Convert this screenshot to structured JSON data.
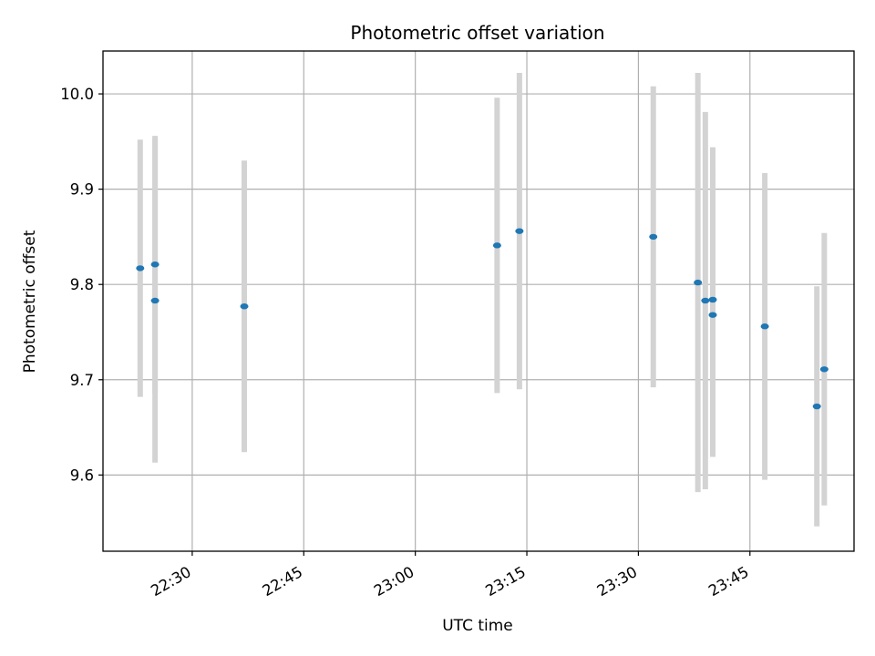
{
  "chart_data": {
    "type": "scatter",
    "title": "Photometric offset variation",
    "xlabel": "UTC time",
    "ylabel": "Photometric offset",
    "x_axis_type": "time",
    "xlim": [
      "22:18",
      "23:59"
    ],
    "ylim": [
      9.52,
      10.045
    ],
    "x_ticks": [
      "22:30",
      "22:45",
      "23:00",
      "23:15",
      "23:30",
      "23:45"
    ],
    "y_ticks": [
      9.6,
      9.7,
      9.8,
      9.9,
      10.0
    ],
    "y_tick_labels": [
      "9.6",
      "9.7",
      "9.8",
      "9.9",
      "10.0"
    ],
    "grid": true,
    "legend": "none",
    "colors": {
      "point": "#1f77b4",
      "error_bar": "#d3d3d3",
      "grid": "#b0b0b0"
    },
    "points": [
      {
        "x": "22:23",
        "y": 9.817,
        "yerr": 0.135
      },
      {
        "x": "22:25",
        "y": 9.821,
        "yerr": 0.135
      },
      {
        "x": "22:25",
        "y": 9.783,
        "yerr": 0.17
      },
      {
        "x": "22:37",
        "y": 9.777,
        "yerr": 0.153
      },
      {
        "x": "23:11",
        "y": 9.841,
        "yerr": 0.155
      },
      {
        "x": "23:14",
        "y": 9.856,
        "yerr": 0.166
      },
      {
        "x": "23:32",
        "y": 9.85,
        "yerr": 0.158
      },
      {
        "x": "23:38",
        "y": 9.802,
        "yerr": 0.22
      },
      {
        "x": "23:39",
        "y": 9.783,
        "yerr": 0.198
      },
      {
        "x": "23:40",
        "y": 9.784,
        "yerr": 0.16
      },
      {
        "x": "23:40",
        "y": 9.768,
        "yerr": 0.149
      },
      {
        "x": "23:47",
        "y": 9.756,
        "yerr": 0.161
      },
      {
        "x": "23:54",
        "y": 9.672,
        "yerr": 0.126
      },
      {
        "x": "23:55",
        "y": 9.711,
        "yerr": 0.143
      }
    ]
  }
}
